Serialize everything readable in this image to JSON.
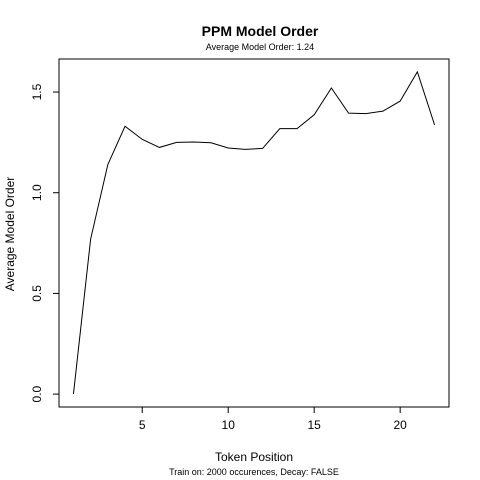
{
  "chart_data": {
    "type": "line",
    "title": "PPM Model Order",
    "subtitle": "Average Model Order: 1.24",
    "xlabel": "Token Position",
    "ylabel": "Average Model Order",
    "caption": "Train on: 2000 occurences, Decay: FALSE",
    "xlim": [
      0.16,
      22.84
    ],
    "ylim": [
      -0.064,
      1.664
    ],
    "xticks": [
      5,
      10,
      15,
      20
    ],
    "yticks": [
      0.0,
      0.5,
      1.0,
      1.5
    ],
    "ytick_labels": [
      "0.0",
      "0.5",
      "1.0",
      "1.5"
    ],
    "grid": false,
    "series": [
      {
        "x": [
          1,
          2,
          3,
          4,
          5,
          6,
          7,
          8,
          9,
          10,
          11,
          12,
          13,
          14,
          15,
          16,
          17,
          18,
          19,
          20,
          21,
          22
        ],
        "values": [
          0.0,
          0.77,
          1.14,
          1.33,
          1.265,
          1.225,
          1.25,
          1.252,
          1.248,
          1.222,
          1.215,
          1.22,
          1.318,
          1.318,
          1.387,
          1.52,
          1.395,
          1.393,
          1.405,
          1.455,
          1.6,
          1.337
        ]
      }
    ]
  }
}
